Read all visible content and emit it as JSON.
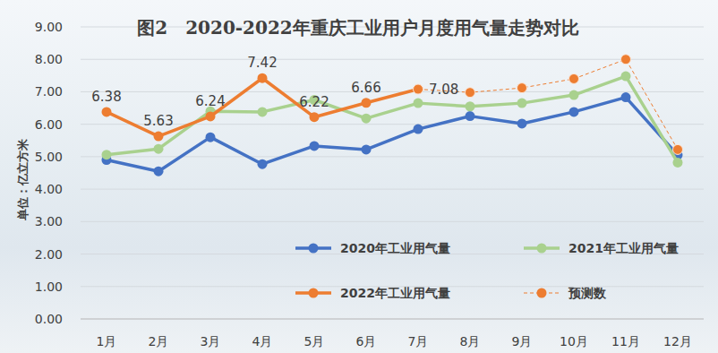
{
  "chart_data": {
    "type": "line",
    "title": "图2　2020-2022年重庆工业用户月度用气量走势对比",
    "y_label": "单位：亿立方米",
    "categories": [
      "1月",
      "2月",
      "3月",
      "4月",
      "5月",
      "6月",
      "7月",
      "8月",
      "9月",
      "10月",
      "11月",
      "12月"
    ],
    "ylim": [
      0,
      9
    ],
    "yticks": [
      {
        "value": 0,
        "label": "0.00"
      },
      {
        "value": 1,
        "label": "1.00"
      },
      {
        "value": 2,
        "label": "2.00"
      },
      {
        "value": 3,
        "label": "3.00"
      },
      {
        "value": 4,
        "label": "4.00"
      },
      {
        "value": 5,
        "label": "5.00"
      },
      {
        "value": 6,
        "label": "6.00"
      },
      {
        "value": 7,
        "label": "7.00"
      },
      {
        "value": 8,
        "label": "8.00"
      },
      {
        "value": 9,
        "label": "9.00"
      }
    ],
    "grid": true,
    "legend": "lower right",
    "series": [
      {
        "name": "2020年工业用气量",
        "color": "#4472c4",
        "marker": "circle",
        "line_style": "solid",
        "values": [
          4.9,
          4.55,
          5.6,
          4.77,
          5.33,
          5.22,
          5.85,
          6.25,
          6.02,
          6.38,
          6.83,
          5.05
        ]
      },
      {
        "name": "2021年工业用气量",
        "color": "#a9d18e",
        "marker": "circle",
        "line_style": "solid",
        "values": [
          5.06,
          5.24,
          6.4,
          6.38,
          6.75,
          6.18,
          6.65,
          6.55,
          6.65,
          6.9,
          7.48,
          4.82
        ]
      },
      {
        "name": "2022年工业用气量",
        "color": "#ed7d31",
        "marker": "circle",
        "line_style": "solid",
        "data_labels": true,
        "values": [
          6.38,
          5.63,
          6.24,
          7.42,
          6.22,
          6.66,
          7.08,
          null,
          null,
          null,
          null,
          null
        ]
      },
      {
        "name": "预测数",
        "color": "#ed7d31",
        "marker": "circle",
        "line_style": "dashed",
        "values": [
          null,
          null,
          null,
          null,
          null,
          null,
          7.08,
          6.98,
          7.12,
          7.4,
          8.0,
          5.22
        ]
      }
    ]
  }
}
